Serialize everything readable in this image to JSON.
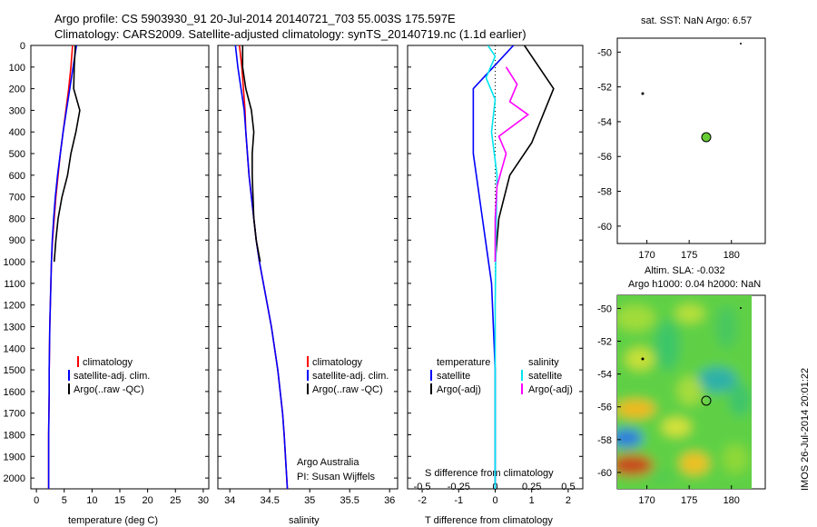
{
  "title": {
    "line1": "Argo profile: CS 5903930_91 20-Jul-2014 20140721_703 55.003S 175.597E",
    "line2": "Climatology: CARS2009. Satellite-adjusted climatology: synTS_20140719.nc (1.1d earlier)"
  },
  "colors": {
    "climatology": "#ff0000",
    "satellite": "#0000ff",
    "argo": "#000000",
    "sat_s": "#00e5ee",
    "argo_s": "#ff00ff",
    "dot": "#66cc33"
  },
  "yticks": [
    "0",
    "100",
    "200",
    "300",
    "400",
    "500",
    "600",
    "700",
    "800",
    "900",
    "1000",
    "1100",
    "1200",
    "1300",
    "1400",
    "1500",
    "1600",
    "1700",
    "1800",
    "1900",
    "2000"
  ],
  "panels": {
    "temperature": {
      "xlabel": "temperature (deg C)",
      "xticks": [
        "0",
        "5",
        "10",
        "15",
        "20",
        "25",
        "30"
      ],
      "legend": [
        "climatology",
        "satellite-adj. clim.",
        "Argo(..raw -QC)"
      ]
    },
    "salinity": {
      "xlabel": "salinity",
      "xticks": [
        "34",
        "34.5",
        "35",
        "35.5",
        "36"
      ],
      "legend": [
        "climatology",
        "satellite-adj. clim.",
        "Argo(..raw -QC)"
      ],
      "note1": "Argo Australia",
      "note2": "PI: Susan Wijffels"
    },
    "difference": {
      "xlabel": "T difference from climatology",
      "xticks": [
        "-2",
        "-1",
        "0",
        "1",
        "2"
      ],
      "s_label": "S difference from climatology",
      "s_ticks": [
        "-0.5",
        "-0.25",
        "0",
        "0.25",
        "0.5"
      ],
      "legend_t_head": "temperature",
      "legend_s_head": "salinity",
      "legend_t": [
        "satellite",
        "Argo(-adj)"
      ],
      "legend_s": [
        "satellite",
        "Argo(-adj)"
      ]
    },
    "sst_map": {
      "title": "sat. SST: NaN Argo: 6.57",
      "yticks": [
        "-50",
        "-52",
        "-54",
        "-56",
        "-58",
        "-60"
      ],
      "xticks": [
        "170",
        "175",
        "180"
      ]
    },
    "sla_map": {
      "title1": "Altim. SLA: -0.032",
      "title2": "Argo h1000: 0.04 h2000: NaN",
      "yticks": [
        "-50",
        "-52",
        "-54",
        "-56",
        "-58",
        "-60"
      ],
      "xticks": [
        "170",
        "175",
        "180"
      ]
    }
  },
  "timestamp": "IMOS 26-Jul-2014 20:01:22",
  "chart_data": [
    {
      "type": "line",
      "xlabel": "temperature (deg C)",
      "ylabel": "",
      "xlim": [
        -1,
        31
      ],
      "ylim": [
        2050,
        0
      ],
      "series": [
        {
          "name": "climatology",
          "x": [
            6.5,
            6.2,
            5.8,
            5.3,
            4.8,
            4.3,
            3.9,
            3.5,
            3.2,
            2.9,
            2.7,
            2.6,
            2.5,
            2.4,
            2.35,
            2.3,
            2.3,
            2.25,
            2.2,
            2.2
          ],
          "y": [
            0,
            100,
            200,
            300,
            400,
            500,
            600,
            700,
            800,
            900,
            1000,
            1100,
            1200,
            1300,
            1400,
            1500,
            1600,
            1700,
            1800,
            2050
          ]
        },
        {
          "name": "satellite-adj. clim.",
          "x": [
            7.2,
            6.6,
            6.0,
            5.4,
            4.8,
            4.3,
            3.8,
            3.4,
            3.1,
            2.85,
            2.7,
            2.6,
            2.5,
            2.4,
            2.35,
            2.3,
            2.3,
            2.25,
            2.2,
            2.2
          ],
          "y": [
            0,
            100,
            200,
            300,
            400,
            500,
            600,
            700,
            800,
            900,
            1000,
            1100,
            1200,
            1300,
            1400,
            1500,
            1600,
            1700,
            1800,
            2050
          ]
        },
        {
          "name": "Argo(..raw -QC)",
          "x": [
            7.0,
            6.8,
            6.7,
            7.8,
            7.1,
            6.2,
            5.6,
            4.6,
            3.9,
            3.5,
            3.2
          ],
          "y": [
            0,
            100,
            200,
            300,
            400,
            500,
            600,
            700,
            800,
            900,
            1000
          ]
        }
      ]
    },
    {
      "type": "line",
      "xlabel": "salinity",
      "ylabel": "",
      "xlim": [
        33.85,
        36.1
      ],
      "ylim": [
        2050,
        0
      ],
      "series": [
        {
          "name": "climatology",
          "x": [
            34.12,
            34.15,
            34.17,
            34.19,
            34.2,
            34.22,
            34.24,
            34.27,
            34.3,
            34.33,
            34.37,
            34.42,
            34.47,
            34.52,
            34.56,
            34.6,
            34.63,
            34.66,
            34.68,
            34.72
          ],
          "y": [
            0,
            100,
            200,
            300,
            400,
            500,
            600,
            700,
            800,
            900,
            1000,
            1100,
            1200,
            1300,
            1400,
            1500,
            1600,
            1700,
            1800,
            2050
          ]
        },
        {
          "name": "satellite-adj. clim.",
          "x": [
            34.07,
            34.1,
            34.14,
            34.18,
            34.2,
            34.22,
            34.24,
            34.27,
            34.3,
            34.33,
            34.37,
            34.42,
            34.47,
            34.52,
            34.56,
            34.6,
            34.63,
            34.66,
            34.68,
            34.72
          ],
          "y": [
            0,
            100,
            200,
            300,
            400,
            500,
            600,
            700,
            800,
            900,
            1000,
            1100,
            1200,
            1300,
            1400,
            1500,
            1600,
            1700,
            1800,
            2050
          ]
        },
        {
          "name": "Argo(..raw -QC)",
          "x": [
            34.16,
            34.16,
            34.2,
            34.27,
            34.3,
            34.28,
            34.28,
            34.29,
            34.3,
            34.33,
            34.38
          ],
          "y": [
            0,
            100,
            200,
            300,
            400,
            500,
            600,
            700,
            800,
            900,
            1000
          ]
        }
      ]
    },
    {
      "type": "line",
      "xlabel": "T difference from climatology",
      "ylabel": "",
      "xlim": [
        -2.4,
        2.4
      ],
      "ylim": [
        2050,
        0
      ],
      "series": [
        {
          "name": "satellite",
          "x": [
            0.5,
            -0.6,
            -0.6,
            -0.35,
            -0.1,
            0.0,
            0.0
          ],
          "y": [
            0,
            200,
            500,
            800,
            1100,
            1500,
            2050
          ]
        },
        {
          "name": "Argo(-adj)",
          "x": [
            0.8,
            1.6,
            1.0,
            0.4,
            0.1,
            0.0
          ],
          "y": [
            0,
            200,
            450,
            600,
            800,
            1000
          ]
        }
      ]
    },
    {
      "type": "scatter",
      "title": "sat. SST: NaN Argo: 6.57",
      "xlim": [
        166.5,
        184
      ],
      "ylim": [
        -61,
        -49.2
      ],
      "points": [
        {
          "x": 175.6,
          "y": -55.0
        }
      ]
    },
    {
      "type": "heatmap",
      "title": "Altim. SLA: -0.032",
      "xlim": [
        166.5,
        184
      ],
      "ylim": [
        -61,
        -49.2
      ],
      "points": [
        {
          "x": 175.6,
          "y": -55.0
        }
      ]
    }
  ]
}
